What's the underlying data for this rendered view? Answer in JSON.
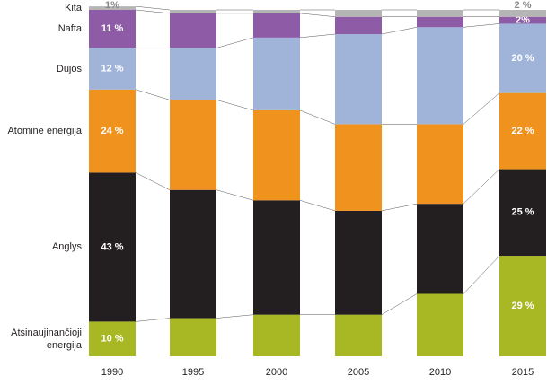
{
  "chart_data": {
    "type": "stacked_bar_percent",
    "categories": [
      "1990",
      "1995",
      "2000",
      "2005",
      "2010",
      "2015"
    ],
    "ylim": [
      0,
      100
    ],
    "series": [
      {
        "name": "Atsinaujinančioji energija",
        "color": "#a8b825",
        "values": [
          10,
          11,
          12,
          12,
          18,
          29
        ],
        "value_labels": [
          "10 %",
          null,
          null,
          null,
          null,
          "29 %"
        ]
      },
      {
        "name": "Anglys",
        "color": "#231f20",
        "values": [
          43,
          37,
          33,
          30,
          26,
          25
        ],
        "value_labels": [
          "43 %",
          null,
          null,
          null,
          null,
          "25 %"
        ]
      },
      {
        "name": "Atominė energija",
        "color": "#f0921e",
        "values": [
          24,
          26,
          26,
          25,
          23,
          22
        ],
        "value_labels": [
          "24 %",
          null,
          null,
          null,
          null,
          "22 %"
        ]
      },
      {
        "name": "Dujos",
        "color": "#9fb4d8",
        "values": [
          12,
          15,
          21,
          26,
          28,
          20
        ],
        "value_labels": [
          "12 %",
          null,
          null,
          null,
          null,
          "20 %"
        ]
      },
      {
        "name": "Nafta",
        "color": "#8e5ba6",
        "values": [
          11,
          10,
          7,
          5,
          3,
          2
        ],
        "value_labels": [
          "11 %",
          null,
          null,
          null,
          null,
          "2%"
        ]
      },
      {
        "name": "Kita",
        "color": "#b5b5b5",
        "values": [
          1,
          1,
          1,
          2,
          2,
          2
        ],
        "value_labels": [
          "1%",
          null,
          null,
          null,
          null,
          "2 %"
        ]
      }
    ]
  }
}
